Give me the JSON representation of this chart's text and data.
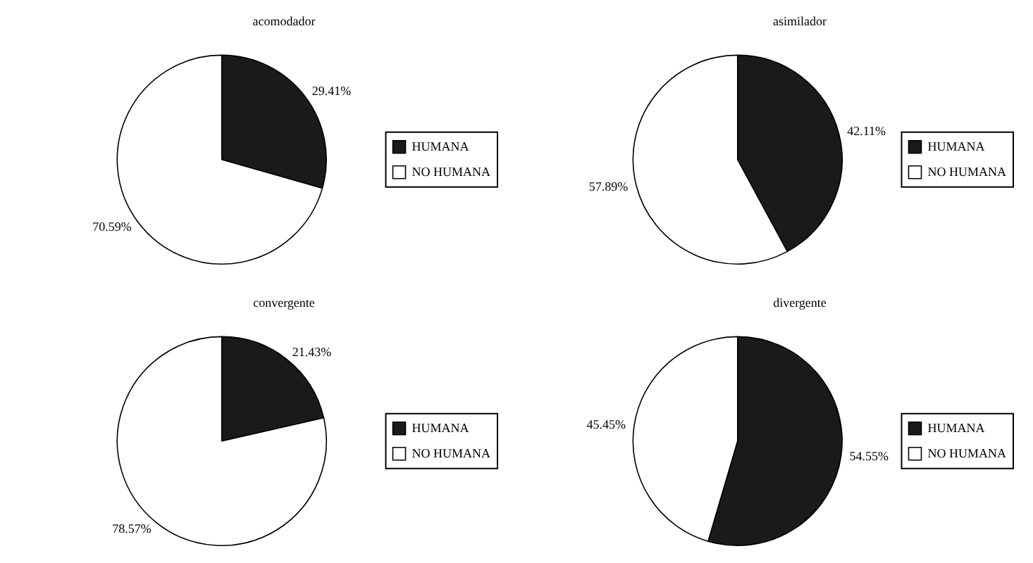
{
  "chart_data": [
    {
      "type": "pie",
      "title": "acomodador",
      "categories": [
        "HUMANA",
        "NO HUMANA"
      ],
      "values": [
        29.41,
        70.59
      ],
      "colors": [
        "#1a1a1a",
        "#ffffff"
      ],
      "value_labels": [
        "29.41%",
        "70.59%"
      ],
      "legend": "right"
    },
    {
      "type": "pie",
      "title": "asimilador",
      "categories": [
        "HUMANA",
        "NO HUMANA"
      ],
      "values": [
        42.11,
        57.89
      ],
      "colors": [
        "#1a1a1a",
        "#ffffff"
      ],
      "value_labels": [
        "42.11%",
        "57.89%"
      ],
      "legend": "right"
    },
    {
      "type": "pie",
      "title": "convergente",
      "categories": [
        "HUMANA",
        "NO HUMANA"
      ],
      "values": [
        21.43,
        78.57
      ],
      "colors": [
        "#1a1a1a",
        "#ffffff"
      ],
      "value_labels": [
        "21.43%",
        "78.57%"
      ],
      "legend": "right"
    },
    {
      "type": "pie",
      "title": "divergente",
      "categories": [
        "HUMANA",
        "NO HUMANA"
      ],
      "values": [
        54.55,
        45.45
      ],
      "colors": [
        "#1a1a1a",
        "#ffffff"
      ],
      "value_labels": [
        "54.55%",
        "45.45%"
      ],
      "legend": "right"
    }
  ]
}
